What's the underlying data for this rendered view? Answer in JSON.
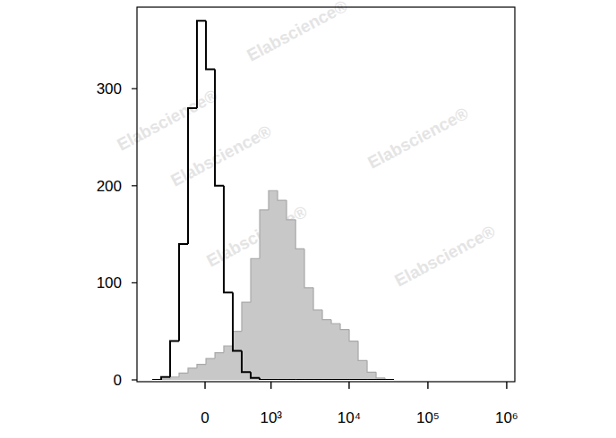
{
  "chart_data": {
    "type": "histogram",
    "log": "x",
    "grid": false,
    "watermark": "Elabscience®",
    "xlim": [
      -1065,
      1268000
    ],
    "xticks": [
      0,
      {
        "value": 1000,
        "label": "10³"
      },
      {
        "value": 10000,
        "label": "10⁴"
      },
      {
        "value": 100000,
        "label": "10⁵"
      },
      {
        "value": 1000000,
        "label": "10⁶"
      }
    ],
    "ylim": [
      0,
      384
    ],
    "yticks": [
      0,
      100,
      200,
      300
    ],
    "bins": [
      -664,
      -494,
      -359,
      -248,
      -154,
      -71,
      8,
      87,
      171,
      268,
      383,
      525,
      703,
      928,
      1219,
      1593,
      2085,
      2703,
      3517,
      4571,
      5940,
      7716,
      10027,
      13026,
      16929,
      21993,
      28571,
      37125
    ],
    "series": [
      {
        "type": "filled",
        "color": "#c8c8c8",
        "values": [
          0,
          1,
          3,
          7,
          12,
          16,
          22,
          28,
          35,
          50,
          80,
          125,
          175,
          195,
          185,
          165,
          135,
          95,
          72,
          62,
          58,
          52,
          40,
          20,
          8,
          2,
          0
        ]
      },
      {
        "type": "outline",
        "color": "#000000",
        "values": [
          0,
          3,
          40,
          140,
          280,
          370,
          320,
          200,
          90,
          30,
          8,
          2,
          0,
          0,
          0,
          0,
          0,
          0,
          0,
          0,
          0,
          0,
          0,
          0,
          0,
          0,
          0
        ]
      }
    ]
  }
}
